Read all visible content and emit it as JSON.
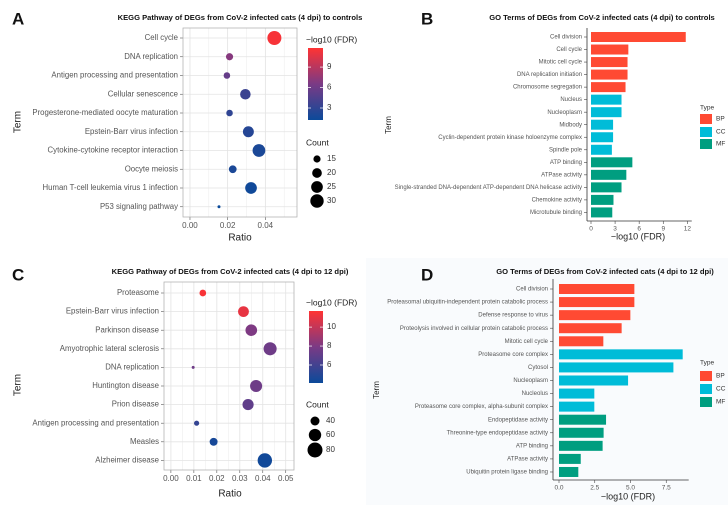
{
  "colors": {
    "fdr_low": "#0b4a9a",
    "fdr_high": "#ff3333",
    "BP": "#ff4a33",
    "CC": "#00bcd8",
    "MF": "#009e80"
  },
  "chart_data": [
    {
      "panel": "A",
      "type": "scatter",
      "title": "KEGG Pathway of DEGs from CoV-2 infected cats (4 dpi) to controls",
      "xlabel": "Ratio",
      "ylabel": "Term",
      "xlim": [
        -0.0037,
        0.0568
      ],
      "xticks": [
        "0.00",
        "0.02",
        "0.04"
      ],
      "xtick_values": [
        0,
        0.02,
        0.04
      ],
      "grid": true,
      "color_legend": {
        "title": "−log10 (FDR)",
        "ticks": [
          "3",
          "6",
          "9"
        ],
        "tick_values": [
          3,
          6,
          9
        ],
        "range": [
          1.24,
          11.8
        ]
      },
      "size_legend": {
        "title": "Count",
        "labels": [
          "15",
          "20",
          "25",
          "30"
        ],
        "values": [
          15,
          20,
          25,
          30
        ],
        "range": [
          10,
          32
        ]
      },
      "legend_position": "right",
      "terms": [
        "Cell cycle",
        "DNA replication",
        "Antigen processing and presentation",
        "Cellular senescence",
        "Progesterone-mediated oocyte maturation",
        "Epstein-Barr virus infection",
        "Cytokine-cytokine receptor interaction",
        "Oocyte meiosis",
        "Human T-cell leukemia virus 1 infection",
        "P53 signaling pathway"
      ],
      "ratio": [
        0.0448,
        0.021,
        0.0196,
        0.0294,
        0.021,
        0.031,
        0.0366,
        0.0227,
        0.0324,
        0.0154
      ],
      "neg_log10_fdr": [
        11.5,
        7.0,
        5.5,
        3.5,
        3.0,
        2.5,
        2.0,
        2.0,
        1.5,
        1.2
      ],
      "count": [
        32,
        15,
        14,
        22,
        14,
        23,
        28,
        16,
        25,
        10
      ]
    },
    {
      "panel": "B",
      "type": "bar",
      "orientation": "horizontal",
      "title": "GO Terms of DEGs from CoV-2 infected cats (4 dpi) to controls",
      "xlabel": "−log10 (FDR)",
      "ylabel": "Term",
      "xticks": [
        "0",
        "3",
        "6",
        "9",
        "12"
      ],
      "xtick_values": [
        0,
        3,
        6,
        9,
        12
      ],
      "legend": {
        "title": "Type",
        "entries": [
          "BP",
          "CC",
          "MF"
        ]
      },
      "legend_position": "right",
      "categories": [
        "Cell division",
        "Cell cycle",
        "Mitotic cell cycle",
        "DNA replication initiation",
        "Chromosome segregation",
        "Nucleus",
        "Nucleoplasm",
        "Midbody",
        "Cyclin-dependent protein kinase holoenzyme complex",
        "Spindle pole",
        "ATP binding",
        "ATPase activity",
        "Single-stranded DNA-dependent ATP-dependent DNA helicase activity",
        "Chemokine activity",
        "Microtubule binding"
      ],
      "values": [
        11.8,
        4.65,
        4.55,
        4.55,
        4.3,
        3.8,
        3.8,
        2.75,
        2.75,
        2.6,
        5.15,
        4.4,
        3.8,
        2.8,
        2.65
      ],
      "types": [
        "BP",
        "BP",
        "BP",
        "BP",
        "BP",
        "CC",
        "CC",
        "CC",
        "CC",
        "CC",
        "MF",
        "MF",
        "MF",
        "MF",
        "MF"
      ]
    },
    {
      "panel": "C",
      "type": "scatter",
      "title": "KEGG Pathway of DEGs from CoV-2 infected cats (4 dpi to 12 dpi)",
      "xlabel": "Ratio",
      "ylabel": "Term",
      "xlim": [
        -0.003,
        0.0536
      ],
      "xticks": [
        "0.00",
        "0.01",
        "0.02",
        "0.03",
        "0.04",
        "0.05"
      ],
      "xtick_values": [
        0,
        0.01,
        0.02,
        0.03,
        0.04,
        0.05
      ],
      "grid": true,
      "color_legend": {
        "title": "−log10 (FDR)",
        "ticks": [
          "6",
          "8",
          "10"
        ],
        "tick_values": [
          6,
          8,
          10
        ],
        "range": [
          4.1,
          11.7
        ]
      },
      "size_legend": {
        "title": "Count",
        "labels": [
          "40",
          "60",
          "80"
        ],
        "values": [
          40,
          60,
          80
        ],
        "range": [
          20,
          80
        ]
      },
      "legend_position": "right",
      "terms": [
        "Proteasome",
        "Epstein-Barr virus infection",
        "Parkinson disease",
        "Amyotrophic lateral sclerosis",
        "DNA replication",
        "Huntington disease",
        "Prion disease",
        "Antigen processing and presentation",
        "Measles",
        "Alzheimer disease"
      ],
      "ratio": [
        0.0139,
        0.0316,
        0.035,
        0.0432,
        0.0097,
        0.0371,
        0.0336,
        0.0112,
        0.0186,
        0.0409
      ],
      "neg_log10_fdr": [
        11.5,
        11.0,
        8.0,
        7.5,
        7.5,
        7.5,
        7.0,
        5.5,
        4.5,
        4.3
      ],
      "count": [
        30,
        50,
        55,
        65,
        20,
        58,
        52,
        25,
        35,
        75
      ]
    },
    {
      "panel": "D",
      "type": "bar",
      "orientation": "horizontal",
      "title": "GO Terms of DEGs from CoV-2 infected cats (4 dpi to 12 dpi)",
      "xlabel": "−log10 (FDR)",
      "ylabel": "Term",
      "xticks": [
        "0.0",
        "2.5",
        "5.0",
        "7.5"
      ],
      "xtick_values": [
        0,
        2.5,
        5.0,
        7.5
      ],
      "legend": {
        "title": "Type",
        "entries": [
          "BP",
          "CC",
          "MF"
        ]
      },
      "legend_position": "right",
      "categories": [
        "Cell division",
        "Proteasomal ubiquitin-independent protein catabolic process",
        "Defense response to virus",
        "Proteolysis involved in cellular protein catabolic process",
        "Mitotic cell cycle",
        "Proteasome core complex",
        "Cytosol",
        "Nucleoplasm",
        "Nucleolus",
        "Proteasome core complex, alpha-subunit complex",
        "Endopeptidase activity",
        "Threonine-type endopeptidase activity",
        "ATP binding",
        "ATPase activity",
        "Ubiquitin protein ligase binding"
      ],
      "values": [
        5.27,
        5.27,
        4.99,
        4.38,
        3.1,
        8.65,
        8.0,
        4.83,
        2.47,
        2.47,
        3.29,
        3.12,
        3.05,
        1.52,
        1.35
      ],
      "types": [
        "BP",
        "BP",
        "BP",
        "BP",
        "BP",
        "CC",
        "CC",
        "CC",
        "CC",
        "CC",
        "MF",
        "MF",
        "MF",
        "MF",
        "MF"
      ]
    }
  ]
}
